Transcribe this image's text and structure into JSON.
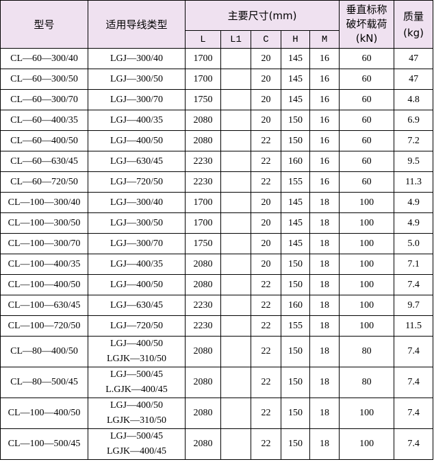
{
  "headers": {
    "model": "型号",
    "conductor": "适用导线类型",
    "dimensions": "主要尺寸(mm)",
    "load_line1": "垂直标称",
    "load_line2": "破坏载荷",
    "load_unit": "(kN)",
    "mass": "质量",
    "mass_unit": "(kg)",
    "sub": [
      "L",
      "L1",
      "C",
      "H",
      "M"
    ]
  },
  "rows": [
    {
      "model": "CL—60—300/40",
      "conductor": [
        "LGJ—300/40"
      ],
      "L": "1700",
      "L1": "",
      "C": "20",
      "H": "145",
      "M": "16",
      "load": "60",
      "mass": "47"
    },
    {
      "model": "CL—60—300/50",
      "conductor": [
        "LGJ—300/50"
      ],
      "L": "1700",
      "L1": "",
      "C": "20",
      "H": "145",
      "M": "16",
      "load": "60",
      "mass": "47"
    },
    {
      "model": "CL—60—300/70",
      "conductor": [
        "LGJ—300/70"
      ],
      "L": "1750",
      "L1": "",
      "C": "20",
      "H": "145",
      "M": "16",
      "load": "60",
      "mass": "4.8"
    },
    {
      "model": "CL—60—400/35",
      "conductor": [
        "LGJ—400/35"
      ],
      "L": "2080",
      "L1": "",
      "C": "20",
      "H": "150",
      "M": "16",
      "load": "60",
      "mass": "6.9"
    },
    {
      "model": "CL—60—400/50",
      "conductor": [
        "LGJ—400/50"
      ],
      "L": "2080",
      "L1": "",
      "C": "22",
      "H": "150",
      "M": "16",
      "load": "60",
      "mass": "7.2"
    },
    {
      "model": "CL—60—630/45",
      "conductor": [
        "LGJ—630/45"
      ],
      "L": "2230",
      "L1": "",
      "C": "22",
      "H": "160",
      "M": "16",
      "load": "60",
      "mass": "9.5"
    },
    {
      "model": "CL—60—720/50",
      "conductor": [
        "LGJ—720/50"
      ],
      "L": "2230",
      "L1": "",
      "C": "22",
      "H": "155",
      "M": "16",
      "load": "60",
      "mass": "11.3"
    },
    {
      "model": "CL—100—300/40",
      "conductor": [
        "LGJ—300/40"
      ],
      "L": "1700",
      "L1": "",
      "C": "20",
      "H": "145",
      "M": "18",
      "load": "100",
      "mass": "4.9"
    },
    {
      "model": "CL—100—300/50",
      "conductor": [
        "LGJ—300/50"
      ],
      "L": "1700",
      "L1": "",
      "C": "20",
      "H": "145",
      "M": "18",
      "load": "100",
      "mass": "4.9"
    },
    {
      "model": "CL—100—300/70",
      "conductor": [
        "LGJ—300/70"
      ],
      "L": "1750",
      "L1": "",
      "C": "20",
      "H": "145",
      "M": "18",
      "load": "100",
      "mass": "5.0"
    },
    {
      "model": "CL—100—400/35",
      "conductor": [
        "LGJ—400/35"
      ],
      "L": "2080",
      "L1": "",
      "C": "20",
      "H": "150",
      "M": "18",
      "load": "100",
      "mass": "7.1"
    },
    {
      "model": "CL—100—400/50",
      "conductor": [
        "LGJ—400/50"
      ],
      "L": "2080",
      "L1": "",
      "C": "22",
      "H": "150",
      "M": "18",
      "load": "100",
      "mass": "7.4"
    },
    {
      "model": "CL—100—630/45",
      "conductor": [
        "LGJ—630/45"
      ],
      "L": "2230",
      "L1": "",
      "C": "22",
      "H": "160",
      "M": "18",
      "load": "100",
      "mass": "9.7"
    },
    {
      "model": "CL—100—720/50",
      "conductor": [
        "LGJ—720/50"
      ],
      "L": "2230",
      "L1": "",
      "C": "22",
      "H": "155",
      "M": "18",
      "load": "100",
      "mass": "11.5"
    },
    {
      "model": "CL—80—400/50",
      "conductor": [
        "LGJ—400/50",
        "LGJK—310/50"
      ],
      "L": "2080",
      "L1": "",
      "C": "22",
      "H": "150",
      "M": "18",
      "load": "80",
      "mass": "7.4"
    },
    {
      "model": "CL—80—500/45",
      "conductor": [
        "LGJ—500/45",
        "L.GJK—400/45"
      ],
      "L": "2080",
      "L1": "",
      "C": "22",
      "H": "150",
      "M": "18",
      "load": "80",
      "mass": "7.4"
    },
    {
      "model": "CL—100—400/50",
      "conductor": [
        "LGJ—400/50",
        "LGJK—310/50"
      ],
      "L": "2080",
      "L1": "",
      "C": "22",
      "H": "150",
      "M": "18",
      "load": "100",
      "mass": "7.4"
    },
    {
      "model": "CL—100—500/45",
      "conductor": [
        "LGJ—500/45",
        "LGJK—400/45"
      ],
      "L": "2080",
      "L1": "",
      "C": "22",
      "H": "150",
      "M": "18",
      "load": "100",
      "mass": "7.4"
    }
  ]
}
